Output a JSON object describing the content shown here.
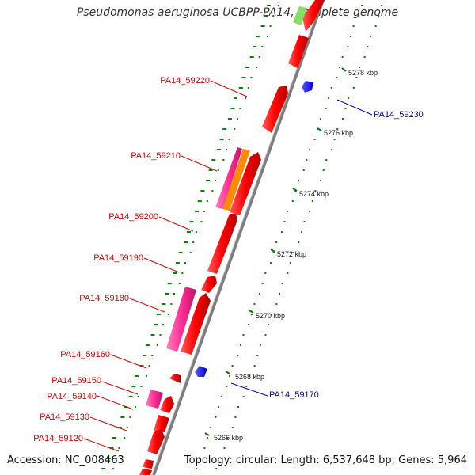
{
  "title": "Pseudomonas aeruginosa UCBPP-PA14, complete genome",
  "footer": {
    "accession": "Accession: NC_008463",
    "topology": "Topology: circular; Length: 6,537,648 bp; Genes: 5,964"
  },
  "ticks": [
    {
      "label": "5278 kbp"
    },
    {
      "label": "5276 kbp"
    },
    {
      "label": "5274 kbp"
    },
    {
      "label": "5272 kbp"
    },
    {
      "label": "5270 kbp"
    },
    {
      "label": "5268 kbp"
    },
    {
      "label": "5266 kbp"
    }
  ],
  "gene_labels": [
    {
      "text": "PA14_59220",
      "color": "#e00000"
    },
    {
      "text": "PA14_59230",
      "color": "#0000c0"
    },
    {
      "text": "PA14_59210",
      "color": "#e00000"
    },
    {
      "text": "PA14_59200",
      "color": "#e00000"
    },
    {
      "text": "PA14_59190",
      "color": "#e00000"
    },
    {
      "text": "PA14_59180",
      "color": "#e00000"
    },
    {
      "text": "PA14_59160",
      "color": "#e00000"
    },
    {
      "text": "PA14_59170",
      "color": "#0000c0"
    },
    {
      "text": "PA14_59150",
      "color": "#e00000"
    },
    {
      "text": "PA14_59140",
      "color": "#e00000"
    },
    {
      "text": "PA14_59130",
      "color": "#e00000"
    },
    {
      "text": "PA14_59120",
      "color": "#e00000"
    }
  ],
  "colors": {
    "forward_gene": "#ff0000",
    "reverse_gene": "#0000ff",
    "pink_gene": "#ff3399",
    "orange_gene": "#ff8800",
    "backbone": "#808080",
    "gc_marks": "#008800"
  }
}
